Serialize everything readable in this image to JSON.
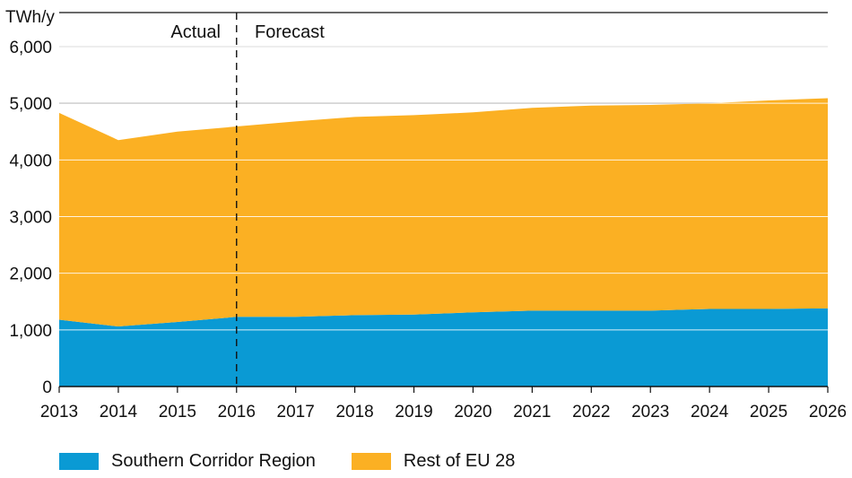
{
  "chart_data": {
    "type": "area",
    "stacked": true,
    "unit_label": "TWh/y",
    "categories": [
      "2013",
      "2014",
      "2015",
      "2016",
      "2017",
      "2018",
      "2019",
      "2020",
      "2021",
      "2022",
      "2023",
      "2024",
      "2025",
      "2026"
    ],
    "series": [
      {
        "name": "Southern Corridor Region",
        "color": "#0a9ad4",
        "values": [
          1180,
          1060,
          1140,
          1230,
          1230,
          1260,
          1270,
          1310,
          1340,
          1340,
          1340,
          1370,
          1370,
          1380
        ]
      },
      {
        "name": "Rest of EU 28",
        "color": "#fbb023",
        "values": [
          3650,
          3290,
          3360,
          3360,
          3450,
          3500,
          3520,
          3530,
          3580,
          3620,
          3630,
          3630,
          3680,
          3710
        ]
      }
    ],
    "ylim": [
      0,
      6000
    ],
    "yticks": [
      "0",
      "1,000",
      "2,000",
      "3,000",
      "4,000",
      "5,000",
      "6,000"
    ],
    "ytick_values": [
      0,
      1000,
      2000,
      3000,
      4000,
      5000,
      6000
    ],
    "divider_after": "2016",
    "divider_labels": {
      "left": "Actual",
      "right": "Forecast"
    },
    "legend_position": "bottom-left",
    "grid": "horizontal"
  }
}
